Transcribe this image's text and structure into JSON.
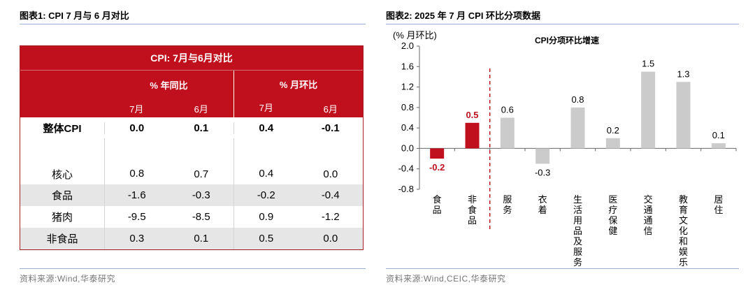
{
  "left_panel": {
    "title": "图表1:  CPI 7 月与 6 月对比",
    "source": "资料来源:Wind,华泰研究",
    "table": {
      "title": "CPI: 7月与6月对比",
      "group_headers": [
        "% 年同比",
        "% 月环比"
      ],
      "month_headers": [
        "7月",
        "6月",
        "7月",
        "6月"
      ],
      "rows": [
        {
          "label": "整体CPI",
          "values": [
            "0.0",
            "0.1",
            "0.4",
            "-0.1"
          ]
        },
        {
          "label": "核心",
          "values": [
            "0.8",
            "0.7",
            "0.4",
            "0.0"
          ]
        },
        {
          "label": "食品",
          "values": [
            "-1.6",
            "-0.3",
            "-0.2",
            "-0.4"
          ]
        },
        {
          "label": "猪肉",
          "values": [
            "-9.5",
            "-8.5",
            "0.9",
            "-1.2"
          ]
        },
        {
          "label": "非食品",
          "values": [
            "0.3",
            "0.1",
            "0.5",
            "0.0"
          ]
        }
      ]
    }
  },
  "right_panel": {
    "title": "图表2:  2025 年 7 月 CPI 环比分项数据",
    "source": "资料来源:Wind,CEIC,华泰研究"
  },
  "chart_data": {
    "type": "bar",
    "title": "CPI分项环比增速",
    "ylabel": "(% 月环比)",
    "ylim": [
      -0.8,
      2.0
    ],
    "yticks": [
      "2.0",
      "1.6",
      "1.2",
      "0.8",
      "0.4",
      "0.0",
      "-0.4",
      "-0.8"
    ],
    "categories": [
      "食品",
      "非食品",
      "服务",
      "衣着",
      "生活用品及服务",
      "医疗保健",
      "交通通信",
      "教育文化和娱乐",
      "居住"
    ],
    "values": [
      -0.2,
      0.5,
      0.6,
      -0.3,
      0.8,
      0.2,
      1.5,
      1.3,
      0.1
    ],
    "value_labels": [
      "-0.2",
      "0.5",
      "0.6",
      "-0.3",
      "0.8",
      "0.2",
      "1.5",
      "1.3",
      "0.1"
    ],
    "highlight_categories": [
      "食品",
      "非食品"
    ],
    "colors": {
      "highlight": "#c0101d",
      "normal": "#cbcbcb",
      "divider": "#c0101d"
    }
  }
}
